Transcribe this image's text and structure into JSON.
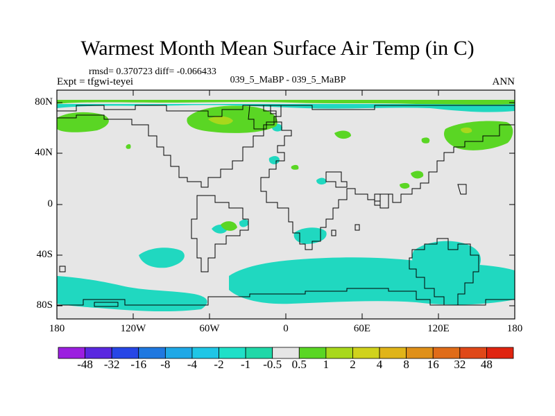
{
  "title": "Warmest Month Mean Surface Air Temp (in C)",
  "stats": "rmsd= 0.370723 diff= -0.066433",
  "expt": "Expt = tfgwi-teyei",
  "center_label": "039_5_MaBP - 039_5_MaBP",
  "right_label": "ANN",
  "lat_labels": [
    "80N",
    "40N",
    "0",
    "40S",
    "80S"
  ],
  "lon_labels": [
    "180",
    "120W",
    "60W",
    "0",
    "60E",
    "120E",
    "180"
  ],
  "colorbar": {
    "labels": [
      "-48",
      "-32",
      "-16",
      "-8",
      "-4",
      "-2",
      "-1",
      "-0.5",
      "0.5",
      "1",
      "2",
      "4",
      "8",
      "16",
      "32",
      "48"
    ],
    "colors": [
      "#9b1fe0",
      "#5a28e0",
      "#2746e6",
      "#1f78e0",
      "#1fa8e6",
      "#1fc6e6",
      "#1fe0c8",
      "#20d8a8",
      "#e6e6e6",
      "#5ad624",
      "#a8d81c",
      "#d0d21c",
      "#e0b418",
      "#e09018",
      "#e06c18",
      "#e04818",
      "#e02410"
    ]
  },
  "colors": {
    "background": "#e6e6e6",
    "cool": "#20d8c0",
    "cool_dark": "#1cc8c8",
    "warm": "#5ad624",
    "warm_light": "#a8d81c"
  }
}
